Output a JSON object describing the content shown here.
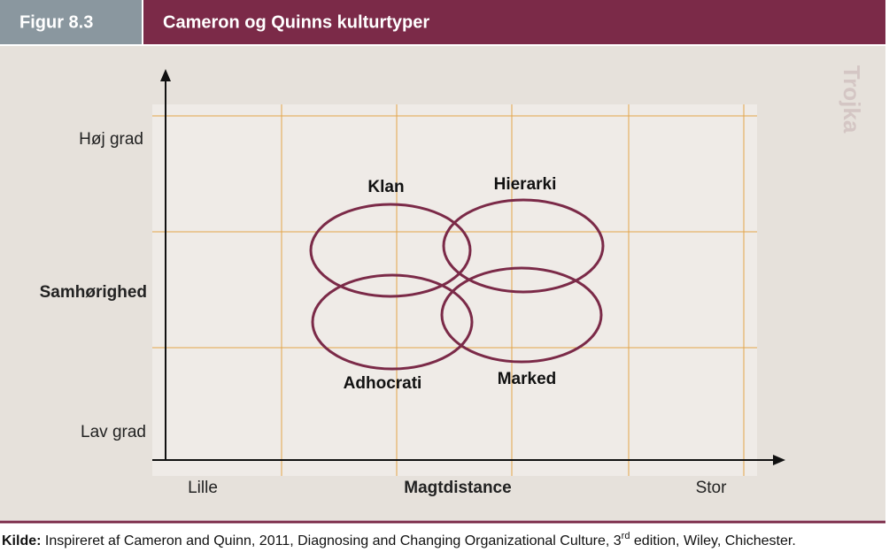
{
  "header": {
    "figure_label": "Figur 8.3",
    "title": "Cameron og Quinns kulturtyper"
  },
  "watermark": "Trojka",
  "y_axis": {
    "label": "Samhørighed",
    "high": "Høj grad",
    "low": "Lav grad"
  },
  "x_axis": {
    "label": "Magtdistance",
    "low": "Lille",
    "high": "Stor"
  },
  "cultures": [
    {
      "label": "Klan"
    },
    {
      "label": "Hierarki"
    },
    {
      "label": "Adhocrati"
    },
    {
      "label": "Marked"
    }
  ],
  "source": {
    "label": "Kilde:",
    "text": " Inspireret af Cameron and Quinn, 2011, Diagnosing and Changing Organizational Culture, 3",
    "superscript": "rd",
    "text_after": " edition, Wiley, Chichester."
  }
}
